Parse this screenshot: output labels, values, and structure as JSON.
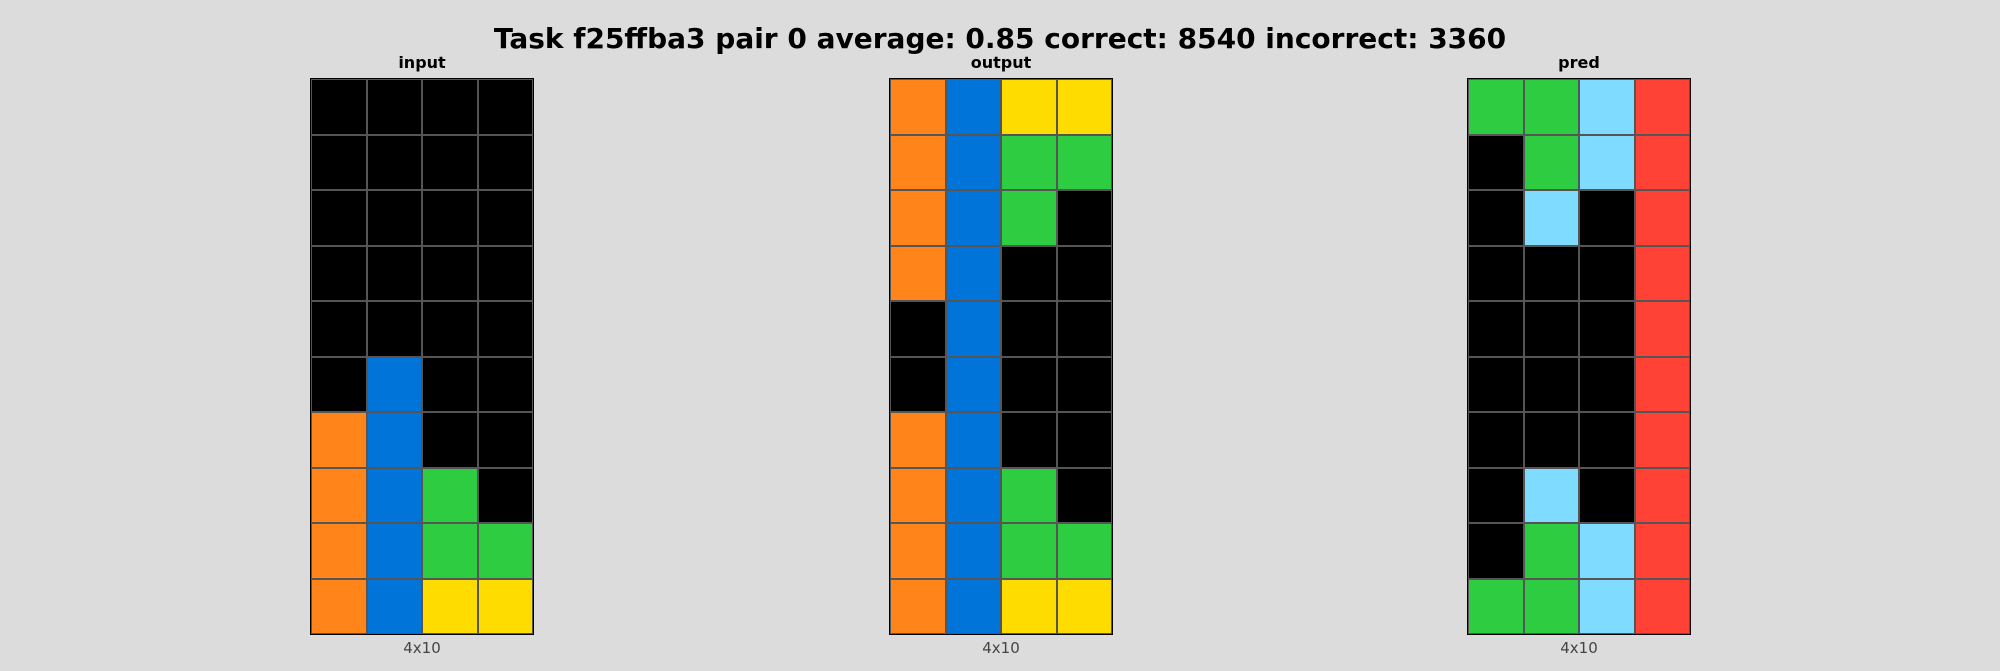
{
  "title": "Task f25ffba3 pair 0 average: 0.85 correct: 8540 incorrect: 3360",
  "palette": {
    "0": "#000000",
    "1": "#0074D9",
    "2": "#FF4136",
    "3": "#2ECC40",
    "4": "#FFDC00",
    "5": "#AAAAAA",
    "6": "#F012BE",
    "7": "#FF851B",
    "8": "#7FDBFF",
    "9": "#870C25"
  },
  "panels": [
    {
      "label": "input",
      "dims": "4x10",
      "grid": [
        [
          0,
          0,
          0,
          0
        ],
        [
          0,
          0,
          0,
          0
        ],
        [
          0,
          0,
          0,
          0
        ],
        [
          0,
          0,
          0,
          0
        ],
        [
          0,
          0,
          0,
          0
        ],
        [
          0,
          1,
          0,
          0
        ],
        [
          7,
          1,
          0,
          0
        ],
        [
          7,
          1,
          3,
          0
        ],
        [
          7,
          1,
          3,
          3
        ],
        [
          7,
          1,
          4,
          4
        ]
      ]
    },
    {
      "label": "output",
      "dims": "4x10",
      "grid": [
        [
          7,
          1,
          4,
          4
        ],
        [
          7,
          1,
          3,
          3
        ],
        [
          7,
          1,
          3,
          0
        ],
        [
          7,
          1,
          0,
          0
        ],
        [
          0,
          1,
          0,
          0
        ],
        [
          0,
          1,
          0,
          0
        ],
        [
          7,
          1,
          0,
          0
        ],
        [
          7,
          1,
          3,
          0
        ],
        [
          7,
          1,
          3,
          3
        ],
        [
          7,
          1,
          4,
          4
        ]
      ]
    },
    {
      "label": "pred",
      "dims": "4x10",
      "grid": [
        [
          3,
          3,
          8,
          2
        ],
        [
          0,
          3,
          8,
          2
        ],
        [
          0,
          8,
          0,
          2
        ],
        [
          0,
          0,
          0,
          2
        ],
        [
          0,
          0,
          0,
          2
        ],
        [
          0,
          0,
          0,
          2
        ],
        [
          0,
          0,
          0,
          2
        ],
        [
          0,
          8,
          0,
          2
        ],
        [
          0,
          3,
          8,
          2
        ],
        [
          3,
          3,
          8,
          2
        ]
      ]
    }
  ]
}
